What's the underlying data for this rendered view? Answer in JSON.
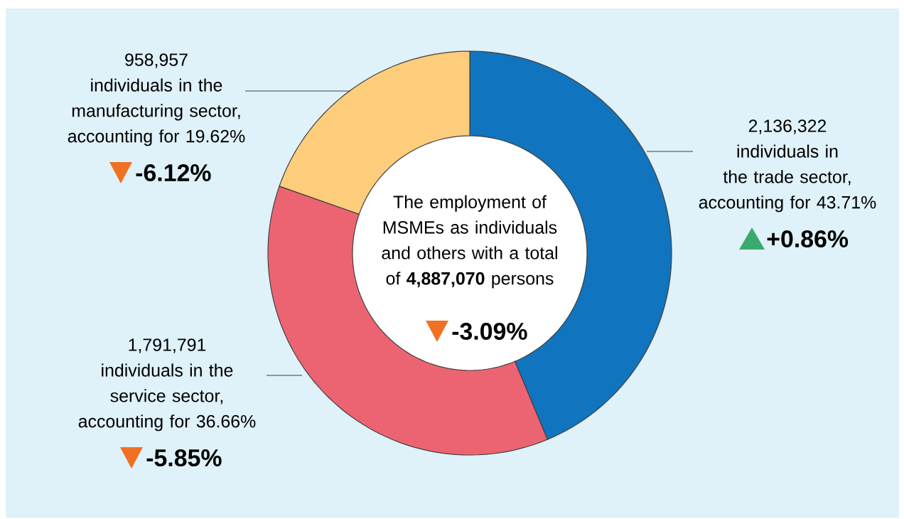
{
  "chart_data": {
    "type": "donut",
    "title": "The employment of MSMEs as individuals and others with a total of **4,887,070** persons",
    "categories": [
      "individuals in the trade sector, accounting for 43.71%",
      "individuals in the service sector, accounting for 36.66%",
      "individuals in the manufacturing sector, accounting for 19.62%"
    ],
    "values": [
      2136322,
      1791791,
      958957
    ],
    "value_labels": [
      "2,136,322",
      "1,791,791",
      "958,957"
    ],
    "colors": [
      "#1174be",
      "#ec6472",
      "#fdcd7c"
    ],
    "annotations": [
      "+0.86%",
      "-5.85%",
      "-6.12%",
      "-3.09%"
    ]
  }
}
